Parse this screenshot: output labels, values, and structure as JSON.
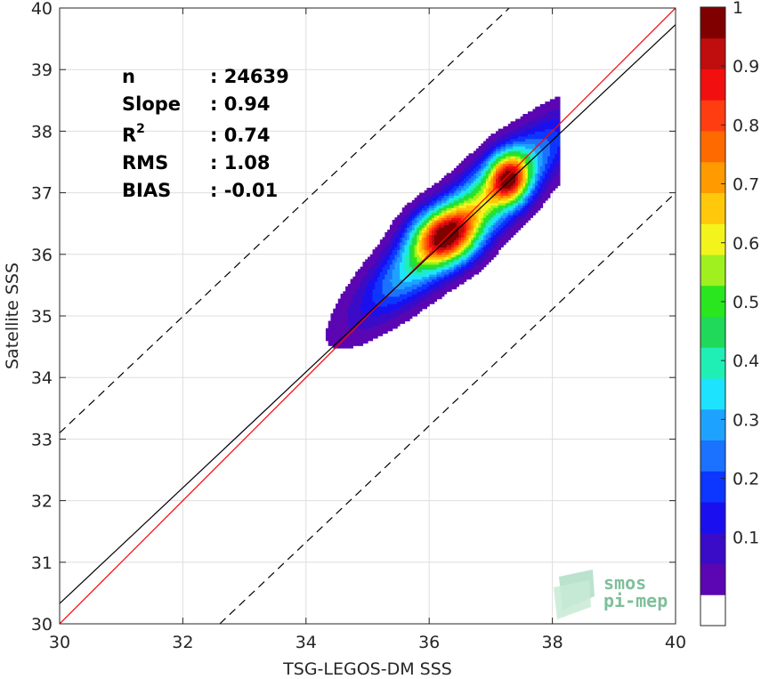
{
  "chart_data": {
    "type": "heatmap",
    "subtype": "density-contour-scatter",
    "xlabel": "TSG-LEGOS-DM SSS",
    "ylabel": "Satellite SSS",
    "xlim": [
      30,
      40
    ],
    "ylim": [
      30,
      40
    ],
    "x_ticks": [
      "30",
      "32",
      "34",
      "36",
      "38",
      "40"
    ],
    "y_ticks": [
      "30",
      "31",
      "32",
      "33",
      "34",
      "35",
      "36",
      "37",
      "38",
      "39",
      "40"
    ],
    "grid": true,
    "stats": [
      {
        "label": "n",
        "value": ": 24639"
      },
      {
        "label": "Slope",
        "value": ": 0.94"
      },
      {
        "label": "R",
        "sup": "2",
        "value": ": 0.74"
      },
      {
        "label": "RMS",
        "value": ": 1.08"
      },
      {
        "label": "BIAS",
        "value": ": -0.01"
      }
    ],
    "lines": [
      {
        "name": "1:1",
        "color": "#ff0000",
        "style": "solid",
        "points": [
          [
            30,
            30
          ],
          [
            40,
            40
          ]
        ]
      },
      {
        "name": "fit",
        "color": "#000000",
        "style": "solid",
        "points": [
          [
            30,
            30.33
          ],
          [
            40,
            39.73
          ]
        ]
      },
      {
        "name": "upper-bound",
        "color": "#000000",
        "style": "dashed",
        "points": [
          [
            30,
            33.1
          ],
          [
            37.3,
            40
          ]
        ]
      },
      {
        "name": "lower-bound",
        "color": "#000000",
        "style": "dashed",
        "points": [
          [
            32.6,
            30
          ],
          [
            40,
            37
          ]
        ]
      }
    ],
    "density": {
      "center": [
        36.6,
        36.6
      ],
      "sigma_major": 1.35,
      "sigma_minor": 0.32,
      "angle_deg": 43,
      "peaks": [
        {
          "x": 37.3,
          "y": 37.25,
          "amp": 1.0,
          "sx": 0.22,
          "sy": 0.28
        },
        {
          "x": 36.25,
          "y": 36.3,
          "amp": 0.88,
          "sx": 0.35,
          "sy": 0.3
        }
      ]
    },
    "colorbar": {
      "range": [
        0,
        1
      ],
      "tick_labels": [
        "0.1",
        "0.2",
        "0.3",
        "0.4",
        "0.5",
        "0.6",
        "0.7",
        "0.8",
        "0.9",
        "1"
      ],
      "tick_values": [
        0.1,
        0.2,
        0.3,
        0.4,
        0.5,
        0.6,
        0.7,
        0.8,
        0.9,
        1.0
      ],
      "colors": [
        "#ffffff",
        "#5b06b2",
        "#3a0cc8",
        "#1a10ef",
        "#0d36ff",
        "#1a72ff",
        "#1da2ff",
        "#1ee3ff",
        "#1fefb4",
        "#20d95a",
        "#29e61e",
        "#9ff01e",
        "#f4f41d",
        "#ffc80a",
        "#ff9a00",
        "#ff6a00",
        "#ff3d10",
        "#f20f0f",
        "#c00d0d",
        "#800000"
      ]
    }
  },
  "logo": {
    "line1": "smos",
    "line2": "pi-mep"
  }
}
